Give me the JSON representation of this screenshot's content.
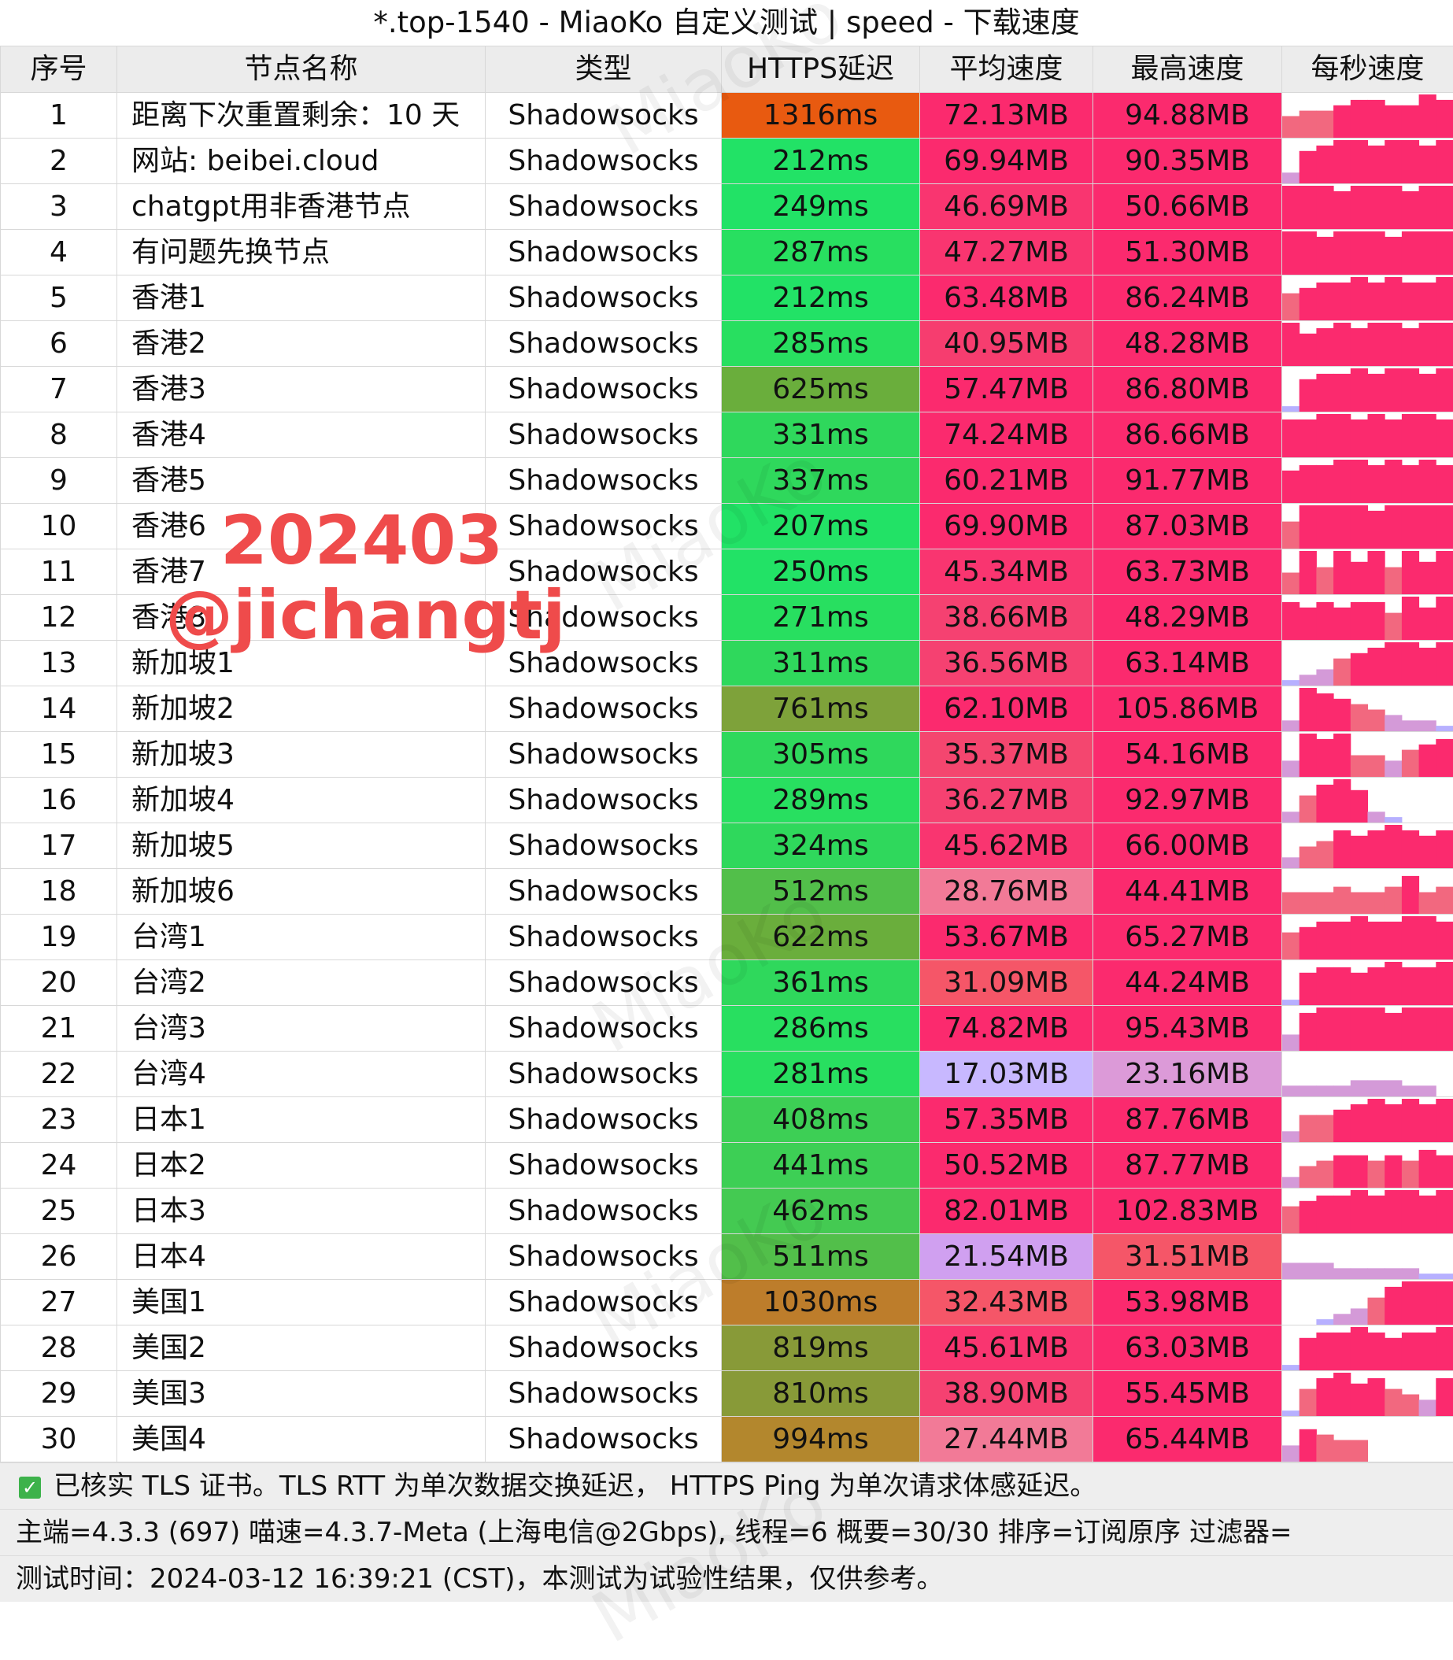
{
  "title": "*.top-1540 - MiaoKo 自定义测试 | speed - 下载速度",
  "columns": [
    "序号",
    "节点名称",
    "类型",
    "HTTPS延迟",
    "平均速度",
    "最高速度",
    "每秒速度"
  ],
  "rows": [
    {
      "idx": "1",
      "name": "距离下次重置剩余：10 天",
      "type": "Shadowsocks",
      "latency": "1316ms",
      "avg": "72.13MB",
      "max": "94.88MB",
      "lat_color": "#e85a10",
      "avg_color": "#fb2a6e",
      "max_color": "#fb2a6e",
      "bars": [
        4,
        5,
        5,
        6,
        7,
        7,
        6,
        6,
        8,
        7
      ]
    },
    {
      "idx": "2",
      "name": "网站: beibei.cloud",
      "type": "Shadowsocks",
      "latency": "212ms",
      "avg": "69.94MB",
      "max": "90.35MB",
      "lat_color": "#22e266",
      "avg_color": "#fb2a6e",
      "max_color": "#fb2a6e",
      "bars": [
        2,
        6,
        7,
        8,
        8,
        7,
        8,
        8,
        7,
        8
      ]
    },
    {
      "idx": "3",
      "name": "chatgpt用非香港节点",
      "type": "Shadowsocks",
      "latency": "249ms",
      "avg": "46.69MB",
      "max": "50.66MB",
      "lat_color": "#22e266",
      "avg_color": "#f93570",
      "max_color": "#fb2a6e",
      "bars": [
        8,
        8,
        8,
        7,
        8,
        8,
        8,
        7,
        8,
        8
      ]
    },
    {
      "idx": "4",
      "name": "有问题先换节点",
      "type": "Shadowsocks",
      "latency": "287ms",
      "avg": "47.27MB",
      "max": "51.30MB",
      "lat_color": "#28df60",
      "avg_color": "#f93570",
      "max_color": "#fb2a6e",
      "bars": [
        8,
        8,
        7,
        8,
        8,
        8,
        7,
        8,
        8,
        8
      ]
    },
    {
      "idx": "5",
      "name": "香港1",
      "type": "Shadowsocks",
      "latency": "212ms",
      "avg": "63.48MB",
      "max": "86.24MB",
      "lat_color": "#22e266",
      "avg_color": "#fb2a6e",
      "max_color": "#fb2a6e",
      "bars": [
        5,
        6,
        7,
        7,
        8,
        7,
        8,
        7,
        7,
        8
      ]
    },
    {
      "idx": "6",
      "name": "香港2",
      "type": "Shadowsocks",
      "latency": "285ms",
      "avg": "40.95MB",
      "max": "48.28MB",
      "lat_color": "#28df60",
      "avg_color": "#f63d6f",
      "max_color": "#fb2a6e",
      "bars": [
        8,
        6,
        7,
        8,
        7,
        8,
        8,
        7,
        8,
        8
      ]
    },
    {
      "idx": "7",
      "name": "香港3",
      "type": "Shadowsocks",
      "latency": "625ms",
      "avg": "57.47MB",
      "max": "86.80MB",
      "lat_color": "#6aae3c",
      "avg_color": "#fb2a6e",
      "max_color": "#fb2a6e",
      "bars": [
        1,
        6,
        7,
        7,
        8,
        7,
        8,
        8,
        7,
        8
      ]
    },
    {
      "idx": "8",
      "name": "香港4",
      "type": "Shadowsocks",
      "latency": "331ms",
      "avg": "74.24MB",
      "max": "86.66MB",
      "lat_color": "#2fd85c",
      "avg_color": "#fb2a6e",
      "max_color": "#fb2a6e",
      "bars": [
        7,
        7,
        8,
        8,
        7,
        8,
        7,
        8,
        8,
        7
      ]
    },
    {
      "idx": "9",
      "name": "香港5",
      "type": "Shadowsocks",
      "latency": "337ms",
      "avg": "60.21MB",
      "max": "91.77MB",
      "lat_color": "#2fd85c",
      "avg_color": "#fb2a6e",
      "max_color": "#fb2a6e",
      "bars": [
        6,
        7,
        7,
        8,
        8,
        7,
        8,
        7,
        8,
        7
      ]
    },
    {
      "idx": "10",
      "name": "香港6",
      "type": "Shadowsocks",
      "latency": "207ms",
      "avg": "69.90MB",
      "max": "87.03MB",
      "lat_color": "#22e266",
      "avg_color": "#fb2a6e",
      "max_color": "#fb2a6e",
      "bars": [
        5,
        8,
        8,
        8,
        8,
        7,
        8,
        8,
        8,
        8
      ]
    },
    {
      "idx": "11",
      "name": "香港7",
      "type": "Shadowsocks",
      "latency": "250ms",
      "avg": "45.34MB",
      "max": "63.73MB",
      "lat_color": "#22e266",
      "avg_color": "#f93570",
      "max_color": "#fb2a6e",
      "bars": [
        4,
        8,
        5,
        8,
        6,
        8,
        5,
        8,
        6,
        8
      ]
    },
    {
      "idx": "12",
      "name": "香港8",
      "type": "Shadowsocks",
      "latency": "271ms",
      "avg": "38.66MB",
      "max": "48.29MB",
      "lat_color": "#28df60",
      "avg_color": "#f54171",
      "max_color": "#fb2a6e",
      "bars": [
        7,
        6,
        7,
        6,
        7,
        7,
        5,
        8,
        6,
        8
      ]
    },
    {
      "idx": "13",
      "name": "新加坡1",
      "type": "Shadowsocks",
      "latency": "311ms",
      "avg": "36.56MB",
      "max": "63.14MB",
      "lat_color": "#2fd85c",
      "avg_color": "#f54171",
      "max_color": "#fb2a6e",
      "bars": [
        1,
        2,
        3,
        5,
        6,
        7,
        8,
        8,
        7,
        8
      ]
    },
    {
      "idx": "14",
      "name": "新加坡2",
      "type": "Shadowsocks",
      "latency": "761ms",
      "avg": "62.10MB",
      "max": "105.86MB",
      "lat_color": "#7ea23a",
      "avg_color": "#fb2a6e",
      "max_color": "#fb2a6e",
      "bars": [
        2,
        8,
        7,
        6,
        5,
        4,
        3,
        2,
        2,
        1
      ]
    },
    {
      "idx": "15",
      "name": "新加坡3",
      "type": "Shadowsocks",
      "latency": "305ms",
      "avg": "35.37MB",
      "max": "54.16MB",
      "lat_color": "#2fd85c",
      "avg_color": "#f4466f",
      "max_color": "#fb2a6e",
      "bars": [
        3,
        8,
        7,
        8,
        4,
        4,
        3,
        5,
        6,
        7
      ]
    },
    {
      "idx": "16",
      "name": "新加坡4",
      "type": "Shadowsocks",
      "latency": "289ms",
      "avg": "36.27MB",
      "max": "92.97MB",
      "lat_color": "#28df60",
      "avg_color": "#f54171",
      "max_color": "#fb2a6e",
      "bars": [
        2,
        5,
        7,
        8,
        6,
        2,
        1,
        0,
        0,
        0
      ]
    },
    {
      "idx": "17",
      "name": "新加坡5",
      "type": "Shadowsocks",
      "latency": "324ms",
      "avg": "45.62MB",
      "max": "66.00MB",
      "lat_color": "#2fd85c",
      "avg_color": "#f93570",
      "max_color": "#fb2a6e",
      "bars": [
        2,
        4,
        5,
        7,
        6,
        7,
        8,
        7,
        6,
        7
      ]
    },
    {
      "idx": "18",
      "name": "新加坡6",
      "type": "Shadowsocks",
      "latency": "512ms",
      "avg": "28.76MB",
      "max": "44.41MB",
      "lat_color": "#52bf4a",
      "avg_color": "#f27a97",
      "max_color": "#fb2a6e",
      "bars": [
        4,
        4,
        4,
        5,
        4,
        4,
        5,
        7,
        4,
        5
      ]
    },
    {
      "idx": "19",
      "name": "台湾1",
      "type": "Shadowsocks",
      "latency": "622ms",
      "avg": "53.67MB",
      "max": "65.27MB",
      "lat_color": "#6aae3c",
      "avg_color": "#fb2a6e",
      "max_color": "#fb2a6e",
      "bars": [
        5,
        6,
        7,
        7,
        8,
        7,
        7,
        8,
        8,
        7
      ]
    },
    {
      "idx": "20",
      "name": "台湾2",
      "type": "Shadowsocks",
      "latency": "361ms",
      "avg": "31.09MB",
      "max": "44.24MB",
      "lat_color": "#2fd85c",
      "avg_color": "#f55668",
      "max_color": "#fb2a6e",
      "bars": [
        1,
        6,
        7,
        7,
        6,
        7,
        8,
        7,
        7,
        8
      ]
    },
    {
      "idx": "21",
      "name": "台湾3",
      "type": "Shadowsocks",
      "latency": "286ms",
      "avg": "74.82MB",
      "max": "95.43MB",
      "lat_color": "#28df60",
      "avg_color": "#fb2a6e",
      "max_color": "#fb2a6e",
      "bars": [
        3,
        7,
        8,
        8,
        8,
        8,
        7,
        8,
        8,
        8
      ]
    },
    {
      "idx": "22",
      "name": "台湾4",
      "type": "Shadowsocks",
      "latency": "281ms",
      "avg": "17.03MB",
      "max": "23.16MB",
      "lat_color": "#28df60",
      "avg_color": "#c8b8ff",
      "max_color": "#dc9ad8",
      "bars": [
        2,
        2,
        2,
        2,
        3,
        3,
        3,
        2,
        2,
        0
      ]
    },
    {
      "idx": "23",
      "name": "日本1",
      "type": "Shadowsocks",
      "latency": "408ms",
      "avg": "57.35MB",
      "max": "87.76MB",
      "lat_color": "#3dcf55",
      "avg_color": "#fb2a6e",
      "max_color": "#fb2a6e",
      "bars": [
        2,
        5,
        5,
        6,
        7,
        8,
        7,
        8,
        7,
        8
      ]
    },
    {
      "idx": "24",
      "name": "日本2",
      "type": "Shadowsocks",
      "latency": "441ms",
      "avg": "50.52MB",
      "max": "87.77MB",
      "lat_color": "#3dcf55",
      "avg_color": "#fb2a6e",
      "max_color": "#fb2a6e",
      "bars": [
        2,
        4,
        5,
        6,
        6,
        5,
        6,
        5,
        7,
        6
      ]
    },
    {
      "idx": "25",
      "name": "日本3",
      "type": "Shadowsocks",
      "latency": "462ms",
      "avg": "82.01MB",
      "max": "102.83MB",
      "lat_color": "#44ca52",
      "avg_color": "#fb2a6e",
      "max_color": "#fb2a6e",
      "bars": [
        5,
        6,
        7,
        7,
        8,
        7,
        8,
        8,
        7,
        8
      ]
    },
    {
      "idx": "26",
      "name": "日本4",
      "type": "Shadowsocks",
      "latency": "511ms",
      "avg": "21.54MB",
      "max": "31.51MB",
      "lat_color": "#52bf4a",
      "avg_color": "#d0a0f0",
      "max_color": "#f55668",
      "bars": [
        3,
        3,
        3,
        2,
        2,
        2,
        2,
        2,
        1,
        1
      ]
    },
    {
      "idx": "27",
      "name": "美国1",
      "type": "Shadowsocks",
      "latency": "1030ms",
      "avg": "32.43MB",
      "max": "53.98MB",
      "lat_color": "#bd7d2b",
      "avg_color": "#f55668",
      "max_color": "#fb2a6e",
      "bars": [
        0,
        0,
        1,
        2,
        3,
        5,
        7,
        8,
        8,
        8
      ]
    },
    {
      "idx": "28",
      "name": "美国2",
      "type": "Shadowsocks",
      "latency": "819ms",
      "avg": "45.61MB",
      "max": "63.03MB",
      "lat_color": "#889a38",
      "avg_color": "#f93570",
      "max_color": "#fb2a6e",
      "bars": [
        1,
        6,
        7,
        7,
        8,
        7,
        6,
        7,
        7,
        8
      ]
    },
    {
      "idx": "29",
      "name": "美国3",
      "type": "Shadowsocks",
      "latency": "810ms",
      "avg": "38.90MB",
      "max": "55.45MB",
      "lat_color": "#889a38",
      "avg_color": "#f54171",
      "max_color": "#fb2a6e",
      "bars": [
        1,
        5,
        7,
        8,
        6,
        7,
        5,
        4,
        3,
        7
      ]
    },
    {
      "idx": "30",
      "name": "美国4",
      "type": "Shadowsocks",
      "latency": "994ms",
      "avg": "27.44MB",
      "max": "65.44MB",
      "lat_color": "#b3872d",
      "avg_color": "#f27a97",
      "max_color": "#fb2a6e",
      "bars": [
        3,
        6,
        5,
        4,
        4,
        0,
        0,
        0,
        0,
        0
      ]
    }
  ],
  "watermark": {
    "line1": "202403",
    "line2": "@jichangtj"
  },
  "background_mark": "MiaoKo",
  "footer": {
    "line1": "已核实 TLS 证书。TLS RTT 为单次数据交换延迟， HTTPS Ping 为单次请求体感延迟。",
    "line2": "主端=4.3.3 (697) 喵速=4.3.7-Meta (上海电信@2Gbps), 线程=6 概要=30/30 排序=订阅原序 过滤器=",
    "line3": "测试时间：2024-03-12 16:39:21 (CST)，本测试为试验性结果，仅供参考。"
  },
  "check_icon": "check-box-icon"
}
